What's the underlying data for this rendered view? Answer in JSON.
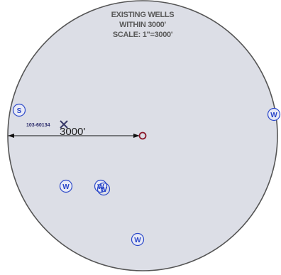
{
  "title": {
    "line1": "EXISTING WELLS",
    "line2": "WITHIN 3000'",
    "line3": "SCALE: 1\"=3000'"
  },
  "radius_label": "3000'",
  "subject_well": {
    "label": "103-60134"
  },
  "well_symbols": [
    {
      "letter": "S",
      "type": "s-well"
    },
    {
      "letter": "W",
      "type": "water-well"
    },
    {
      "letter": "W",
      "type": "water-well"
    },
    {
      "letter": "W",
      "type": "water-well"
    },
    {
      "letter": "W",
      "type": "water-well"
    },
    {
      "letter": "W",
      "type": "water-well"
    }
  ],
  "colors": {
    "background": "#ffffff",
    "circle_fill": "#dcdee6",
    "circle_stroke": "#555555",
    "well_symbol": "#2a47c9",
    "center_marker": "#8b1a2b",
    "title_text": "#5a5a5a",
    "dimension_line": "#111111"
  },
  "icons": {
    "center": "circle-target-icon",
    "plugged_well": "x-cross-icon",
    "water_well": "circled-w-icon",
    "s_well": "circled-s-icon"
  }
}
